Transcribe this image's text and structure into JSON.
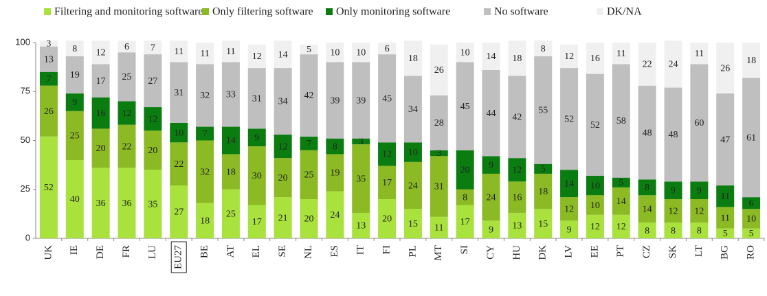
{
  "chart_data": {
    "type": "stacked-bar",
    "categories": [
      "UK",
      "IE",
      "DE",
      "FR",
      "LU",
      "EU27",
      "BE",
      "AT",
      "EL",
      "SE",
      "NL",
      "ES",
      "IT",
      "FI",
      "PL",
      "MT",
      "SI",
      "CY",
      "HU",
      "DK",
      "LV",
      "EE",
      "PT",
      "CZ",
      "SK",
      "LT",
      "BG",
      "RO"
    ],
    "series": [
      {
        "name": "Filtering and monitoring software",
        "color": "#a9e23c",
        "values": [
          52,
          40,
          36,
          36,
          35,
          27,
          18,
          25,
          17,
          21,
          20,
          24,
          13,
          20,
          15,
          11,
          17,
          9,
          13,
          15,
          9,
          12,
          12,
          8,
          8,
          8,
          5,
          5
        ]
      },
      {
        "name": "Only filtering software",
        "color": "#8cba24",
        "values": [
          26,
          25,
          20,
          22,
          20,
          22,
          32,
          18,
          30,
          20,
          25,
          19,
          35,
          17,
          24,
          31,
          8,
          24,
          16,
          18,
          12,
          10,
          14,
          14,
          12,
          12,
          11,
          10
        ]
      },
      {
        "name": "Only monitoring software",
        "color": "#0b7d10",
        "values": [
          7,
          9,
          16,
          12,
          12,
          10,
          7,
          14,
          9,
          12,
          7,
          8,
          3,
          12,
          10,
          3,
          20,
          9,
          12,
          5,
          14,
          10,
          5,
          8,
          9,
          9,
          11,
          6
        ]
      },
      {
        "name": "No software",
        "color": "#bfbfbf",
        "values": [
          13,
          19,
          17,
          25,
          27,
          31,
          32,
          33,
          31,
          34,
          42,
          39,
          39,
          45,
          34,
          28,
          45,
          44,
          42,
          55,
          52,
          52,
          58,
          48,
          48,
          60,
          47,
          61
        ]
      },
      {
        "name": "DK/NA",
        "color": "#f0f0f0",
        "values": [
          3,
          8,
          12,
          6,
          7,
          11,
          11,
          11,
          12,
          14,
          5,
          10,
          10,
          6,
          18,
          26,
          10,
          14,
          18,
          8,
          12,
          16,
          11,
          22,
          24,
          11,
          26,
          18
        ]
      }
    ],
    "ylim": [
      0,
      100
    ],
    "yticks": [
      0,
      25,
      50,
      75,
      100
    ],
    "legend": "top",
    "highlight": "EU27"
  }
}
